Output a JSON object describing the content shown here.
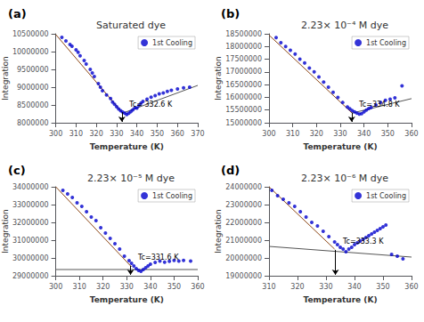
{
  "chart_data": [
    {
      "type": "scatter",
      "panel_label": "(a)",
      "title": "Saturated dye",
      "xlabel": "Temperature (K)",
      "ylabel": "Integration",
      "xlim": [
        300,
        370
      ],
      "ylim": [
        8000000,
        10500000
      ],
      "xticks": [
        300,
        310,
        320,
        330,
        340,
        350,
        360,
        370
      ],
      "yticks": [
        8000000,
        8500000,
        9000000,
        9500000,
        10000000,
        10500000
      ],
      "grid": false,
      "legend": "upper right",
      "series": [
        {
          "name": "1st Cooling",
          "type": "scatter",
          "marker": "circle",
          "color": "#0000cd",
          "x": [
            303,
            305,
            307,
            308,
            310,
            311,
            312,
            314,
            315,
            317,
            318,
            319,
            321,
            322,
            323,
            325,
            327,
            328,
            329,
            330,
            331,
            332,
            333,
            334,
            335,
            336,
            337,
            338,
            339,
            340,
            341,
            342,
            343,
            345,
            347,
            349,
            351,
            353,
            355,
            357,
            360,
            363,
            366
          ],
          "values": [
            10400000,
            10300000,
            10200000,
            10150000,
            10050000,
            9980000,
            9880000,
            9750000,
            9650000,
            9500000,
            9400000,
            9300000,
            9100000,
            9000000,
            8900000,
            8780000,
            8680000,
            8580000,
            8520000,
            8450000,
            8390000,
            8340000,
            8300000,
            8270000,
            8230000,
            8270000,
            8310000,
            8360000,
            8420000,
            8410000,
            8490000,
            8550000,
            8600000,
            8660000,
            8720000,
            8760000,
            8810000,
            8840000,
            8880000,
            8910000,
            8950000,
            8980000,
            9000000
          ]
        },
        {
          "type": "line",
          "color": "#8B4513",
          "x": [
            300,
            333
          ],
          "values": [
            10480000,
            8270000
          ]
        },
        {
          "type": "line",
          "color": "#555555",
          "x": [
            333,
            370
          ],
          "values": [
            8270000,
            9050000
          ]
        }
      ],
      "annotations": [
        {
          "text": "Tc= 332.6 K",
          "x": 332.6,
          "y": 8296787.878787879,
          "arrow_to": 8025000
        }
      ]
    },
    {
      "type": "scatter",
      "panel_label": "(b)",
      "title": "2.23× 10⁻⁴ M dye",
      "xlabel": "Temperature (K)",
      "ylabel": "Integration",
      "xlim": [
        300,
        360
      ],
      "ylim": [
        15000000,
        18500000
      ],
      "xticks": [
        300,
        310,
        320,
        330,
        340,
        350,
        360
      ],
      "yticks": [
        15000000,
        15500000,
        16000000,
        16500000,
        17000000,
        17500000,
        18000000,
        18500000
      ],
      "grid": false,
      "legend": "upper right",
      "series": [
        {
          "name": "1st Cooling",
          "type": "scatter",
          "marker": "circle",
          "color": "#0000cd",
          "x": [
            303,
            305,
            307,
            309,
            311,
            313,
            315,
            317,
            319,
            321,
            323,
            325,
            327,
            329,
            331,
            333,
            334,
            335,
            336,
            337,
            338,
            339,
            340,
            341,
            342,
            343,
            345,
            347,
            349,
            351,
            353,
            356
          ],
          "values": [
            18350000,
            18150000,
            18000000,
            17850000,
            17700000,
            17500000,
            17350000,
            17150000,
            17000000,
            16800000,
            16600000,
            16400000,
            16200000,
            16000000,
            15800000,
            15620000,
            15550000,
            15480000,
            15430000,
            15380000,
            15340000,
            15360000,
            15430000,
            15500000,
            15560000,
            15600000,
            15700000,
            15800000,
            15880000,
            15930000,
            15980000,
            16450000
          ]
        },
        {
          "type": "line",
          "color": "#8B4513",
          "x": [
            300,
            335
          ],
          "values": [
            18450000,
            15380000
          ]
        },
        {
          "type": "line",
          "color": "#555555",
          "x": [
            335,
            360
          ],
          "values": [
            15380000,
            15950000
          ]
        }
      ],
      "annotations": [
        {
          "text": "Tc=334.8 K",
          "x": 334.8,
          "y": 15397542.857142856,
          "arrow_to": 15035000
        }
      ]
    },
    {
      "type": "scatter",
      "panel_label": "(c)",
      "title": "2.23× 10⁻⁵ M dye",
      "xlabel": "Temperature (K)",
      "ylabel": "Integration",
      "xlim": [
        300,
        360
      ],
      "ylim": [
        29000000,
        34000000
      ],
      "xticks": [
        300,
        310,
        320,
        330,
        340,
        350,
        360
      ],
      "yticks": [
        29000000,
        30000000,
        31000000,
        32000000,
        33000000,
        34000000
      ],
      "grid": false,
      "legend": "upper right",
      "series": [
        {
          "name": "1st Cooling",
          "type": "scatter",
          "marker": "circle",
          "color": "#0000cd",
          "x": [
            303,
            305,
            307,
            309,
            311,
            313,
            315,
            317,
            319,
            321,
            323,
            325,
            327,
            329,
            331,
            332,
            333,
            334,
            335,
            336,
            337,
            338,
            339,
            340,
            342,
            344,
            346,
            348,
            350,
            352,
            354,
            357
          ],
          "values": [
            33800000,
            33600000,
            33400000,
            33100000,
            32900000,
            32600000,
            32300000,
            32100000,
            31700000,
            31400000,
            31100000,
            30800000,
            30500000,
            30100000,
            29850000,
            29700000,
            29550000,
            29400000,
            29300000,
            29250000,
            29350000,
            29450000,
            29550000,
            29650000,
            29750000,
            29820000,
            29760000,
            29810000,
            29860000,
            29820000,
            29860000,
            29820000
          ]
        },
        {
          "type": "line",
          "color": "#8B4513",
          "x": [
            300,
            332
          ],
          "values": [
            34000000,
            29500000
          ]
        },
        {
          "type": "line",
          "color": "#555555",
          "x": [
            300,
            360
          ],
          "values": [
            29350000,
            29350000
          ]
        }
      ],
      "annotations": [
        {
          "text": "Tc=331.6 K",
          "x": 331.6,
          "y": 29556250,
          "arrow_to": 29050000
        }
      ]
    },
    {
      "type": "scatter",
      "panel_label": "(d)",
      "title": "2.23× 10⁻⁶ M dye",
      "xlabel": "Temperature (K)",
      "ylabel": "Integration",
      "xlim": [
        310,
        360
      ],
      "ylim": [
        19000000,
        24000000
      ],
      "xticks": [
        310,
        320,
        330,
        340,
        350,
        360
      ],
      "yticks": [
        19000000,
        20000000,
        21000000,
        22000000,
        23000000,
        24000000
      ],
      "grid": false,
      "legend": "upper right",
      "series": [
        {
          "name": "1st Cooling",
          "type": "scatter",
          "marker": "circle",
          "color": "#0000cd",
          "x": [
            311,
            313,
            315,
            317,
            319,
            321,
            323,
            325,
            327,
            329,
            331,
            333,
            334,
            335,
            336,
            337,
            338,
            339,
            340,
            341,
            342,
            343,
            344,
            345,
            346,
            347,
            348,
            349,
            350,
            351,
            353,
            355,
            357
          ],
          "values": [
            23800000,
            23500000,
            23300000,
            23100000,
            22900000,
            22600000,
            22300000,
            22000000,
            21800000,
            21500000,
            21200000,
            20900000,
            20750000,
            20600000,
            20500000,
            20350000,
            20500000,
            20600000,
            20750000,
            20850000,
            20950000,
            21050000,
            21150000,
            21250000,
            21350000,
            21450000,
            21550000,
            21650000,
            21750000,
            21850000,
            20200000,
            20100000,
            19950000
          ]
        },
        {
          "type": "line",
          "color": "#8B4513",
          "x": [
            310,
            333
          ],
          "values": [
            24000000,
            20500000
          ]
        },
        {
          "type": "line",
          "color": "#555555",
          "x": [
            310,
            360
          ],
          "values": [
            20650000,
            20050000
          ]
        }
      ],
      "annotations": [
        {
          "text": "Tc=333.3 K",
          "x": 333.3,
          "y": 20454347.826086957,
          "arrow_to": 19050000
        }
      ]
    }
  ]
}
